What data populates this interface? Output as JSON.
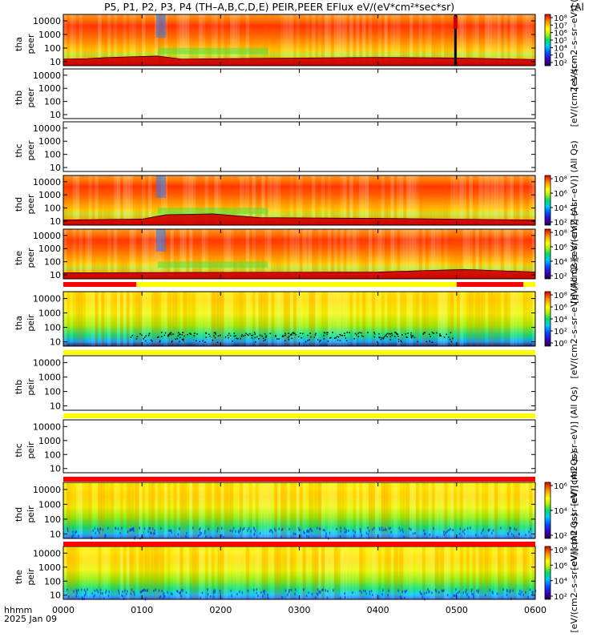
{
  "title": "P5, P1, P2, P3, P4 (TH–A,B,C,D,E) PEIR,PEER EFlux eV/(eV*cm²*sec*sr)",
  "title_suffix": "(Al",
  "x_axis": {
    "ticks": [
      "0000",
      "0100",
      "0200",
      "0300",
      "0400",
      "0500",
      "0600"
    ],
    "label_line1": "hhmm",
    "label_line2": "2025 Jan 09"
  },
  "y_ticks": [
    "10000",
    "1000",
    "100",
    "10"
  ],
  "colorbar_ticks": {
    "peer_full": [
      "10⁸",
      "10⁷",
      "10⁶",
      "10⁵",
      "10⁴",
      "10⁳",
      "10²"
    ],
    "peer_d": [
      "10⁸",
      "10⁶",
      "10⁴",
      "10²"
    ],
    "peer_e": [
      "10⁸",
      "10⁶",
      "10⁴",
      "10²"
    ],
    "peir_a": [
      "10⁸",
      "10⁶",
      "10⁴",
      "10²",
      "10⁰"
    ],
    "peir_d": [
      "10⁶",
      "10⁴",
      "10²"
    ],
    "peir_e": [
      "10⁸",
      "10⁶",
      "10⁴",
      "10²"
    ]
  },
  "colorbar_labels": {
    "peer_a": "[eV/(cm2–s–sr–eV)] (Al",
    "peer_b": "[eV/(cm2–s–sr–",
    "peer_d": "[eV/(cm2–s–sr–eV)] (All Qs)",
    "peer_e": "[eV/(cm2–s–sr–eV)] (Al",
    "peir_a": "[eV/(cm2–s–sr–eV)] (All Qs)",
    "peir_c": "[eV/(cm2–s–sr–eV)] (All Qs)",
    "peir_d": "[eV/(cm2–s–sr–eV)] (All Qs)",
    "peir_e": "[eV/(cm2–s–sr–eV)] (All Qs)"
  },
  "chart_data": [
    {
      "type": "heatmap",
      "panel": "tha peer",
      "ylabel": [
        "tha",
        "peer"
      ],
      "scale_y": "log",
      "ylim": [
        5,
        30000
      ],
      "xlim": [
        "0000",
        "0600"
      ],
      "has_data": true,
      "colorbar": "peer_full",
      "colorbar_label": "peer_a",
      "coverage": [
        [
          0,
          6
        ]
      ],
      "low_energy_cutoff": [
        [
          0,
          15
        ],
        [
          0.3,
          16
        ],
        [
          0.6,
          20
        ],
        [
          1.2,
          25
        ],
        [
          1.5,
          15
        ],
        [
          2,
          16
        ],
        [
          4,
          20
        ],
        [
          5,
          18
        ],
        [
          6,
          14
        ]
      ]
    },
    {
      "type": "heatmap",
      "panel": "thb peer",
      "ylabel": [
        "thb",
        "peer"
      ],
      "scale_y": "log",
      "ylim": [
        5,
        30000
      ],
      "has_data": false,
      "colorbar_label": "peer_b"
    },
    {
      "type": "heatmap",
      "panel": "thc peer",
      "ylabel": [
        "thc",
        "peer"
      ],
      "scale_y": "log",
      "ylim": [
        5,
        30000
      ],
      "has_data": false
    },
    {
      "type": "heatmap",
      "panel": "thd peer",
      "ylabel": [
        "thd",
        "peer"
      ],
      "scale_y": "log",
      "ylim": [
        5,
        30000
      ],
      "has_data": true,
      "colorbar": "peer_d",
      "colorbar_label": "peer_d",
      "coverage": [
        [
          0,
          6
        ]
      ],
      "low_energy_cutoff": [
        [
          0,
          12
        ],
        [
          1,
          14
        ],
        [
          1.3,
          30
        ],
        [
          1.9,
          35
        ],
        [
          2.5,
          18
        ],
        [
          4,
          16
        ],
        [
          6,
          12
        ]
      ]
    },
    {
      "type": "heatmap",
      "panel": "the peer",
      "ylabel": [
        "the",
        "peer"
      ],
      "scale_y": "log",
      "ylim": [
        5,
        30000
      ],
      "has_data": true,
      "colorbar": "peer_e",
      "colorbar_label": "peer_e",
      "coverage": [
        [
          0,
          6
        ]
      ],
      "low_energy_cutoff": [
        [
          0,
          14
        ],
        [
          2,
          15
        ],
        [
          4,
          16
        ],
        [
          5.1,
          25
        ],
        [
          6,
          16
        ]
      ]
    },
    {
      "type": "heatmap",
      "panel": "tha peir",
      "ylabel": [
        "tha",
        "peir"
      ],
      "scale_y": "log",
      "ylim": [
        5,
        30000
      ],
      "has_data": true,
      "colorbar": "peir_a",
      "colorbar_label": "peir_a",
      "coverage": [
        [
          0,
          6
        ]
      ]
    },
    {
      "type": "heatmap",
      "panel": "thb peir",
      "ylabel": [
        "thb",
        "peir"
      ],
      "scale_y": "log",
      "ylim": [
        5,
        30000
      ],
      "has_data": false
    },
    {
      "type": "heatmap",
      "panel": "thc peir",
      "ylabel": [
        "thc",
        "peir"
      ],
      "scale_y": "log",
      "ylim": [
        5,
        30000
      ],
      "has_data": false,
      "colorbar_label": "peir_c"
    },
    {
      "type": "heatmap",
      "panel": "thd peir",
      "ylabel": [
        "thd",
        "peir"
      ],
      "scale_y": "log",
      "ylim": [
        5,
        30000
      ],
      "has_data": true,
      "colorbar": "peir_d",
      "colorbar_label": "peir_d",
      "coverage": [
        [
          0,
          6
        ]
      ]
    },
    {
      "type": "heatmap",
      "panel": "the peir",
      "ylabel": [
        "the",
        "peir"
      ],
      "scale_y": "log",
      "ylim": [
        5,
        30000
      ],
      "has_data": true,
      "colorbar": "peir_e",
      "colorbar_label": "peir_e",
      "coverage": [
        [
          0,
          6
        ]
      ]
    }
  ],
  "status_bars": [
    {
      "after_panel": "the peer",
      "segments": [
        {
          "from": 0,
          "to": 0.93,
          "color": "#ff0000"
        },
        {
          "from": 0.93,
          "to": 5.0,
          "color": "#ffff00"
        },
        {
          "from": 5.0,
          "to": 5.85,
          "color": "#ff0000"
        },
        {
          "from": 5.85,
          "to": 6.0,
          "color": "#ffff00"
        }
      ]
    },
    {
      "after_panel": "tha peir",
      "segments": [
        {
          "from": 0,
          "to": 6,
          "color": "#ffff00"
        }
      ]
    },
    {
      "after_panel": "thb peir",
      "segments": [
        {
          "from": 0,
          "to": 6,
          "color": "#ffff00"
        }
      ]
    },
    {
      "after_panel": "thc peir",
      "segments": [
        {
          "from": 0,
          "to": 6,
          "color": "#ff0000"
        }
      ]
    },
    {
      "after_panel": "thd peir",
      "segments": [
        {
          "from": 0,
          "to": 6,
          "color": "#ff0000"
        }
      ]
    }
  ]
}
